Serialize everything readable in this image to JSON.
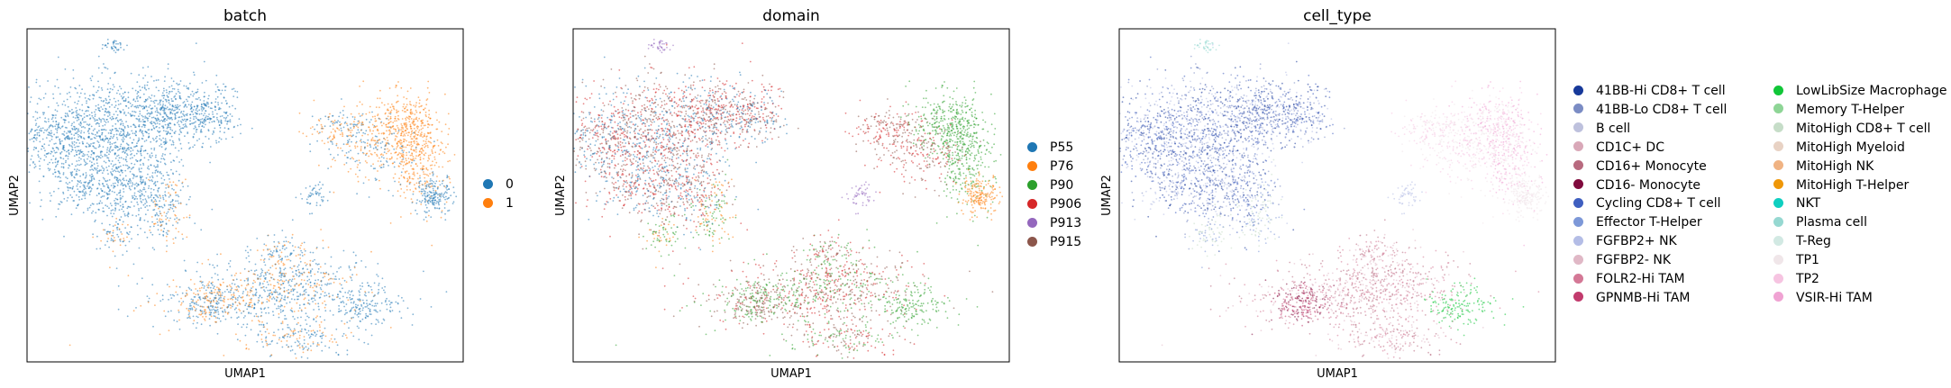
{
  "chart_data": [
    {
      "type": "scatter",
      "title": "batch",
      "xlabel": "UMAP1",
      "ylabel": "UMAP2",
      "grid": false,
      "ticks": false,
      "legend_position": "right",
      "legend": [
        {
          "label": "0",
          "color": "#1f77b4"
        },
        {
          "label": "1",
          "color": "#ff7f0e"
        }
      ]
    },
    {
      "type": "scatter",
      "title": "domain",
      "xlabel": "UMAP1",
      "ylabel": "UMAP2",
      "grid": false,
      "ticks": false,
      "legend_position": "right",
      "legend": [
        {
          "label": "P55",
          "color": "#1f77b4"
        },
        {
          "label": "P76",
          "color": "#ff7f0e"
        },
        {
          "label": "P90",
          "color": "#2ca02c"
        },
        {
          "label": "P906",
          "color": "#d62728"
        },
        {
          "label": "P913",
          "color": "#9467bd"
        },
        {
          "label": "P915",
          "color": "#8c564b"
        }
      ]
    },
    {
      "type": "scatter",
      "title": "cell_type",
      "xlabel": "UMAP1",
      "ylabel": "UMAP2",
      "grid": false,
      "ticks": false,
      "legend_position": "right",
      "legend_columns": 2,
      "legend": [
        {
          "label": "41BB-Hi CD8+ T cell",
          "color": "#17399a"
        },
        {
          "label": "41BB-Lo CD8+ T cell",
          "color": "#7b8cc4"
        },
        {
          "label": "B cell",
          "color": "#bec1dd"
        },
        {
          "label": "CD1C+ DC",
          "color": "#d9a8b8"
        },
        {
          "label": "CD16+ Monocyte",
          "color": "#b86a7f"
        },
        {
          "label": "CD16- Monocyte",
          "color": "#800a3d"
        },
        {
          "label": "Cycling CD8+ T cell",
          "color": "#3f5fc0"
        },
        {
          "label": "Effector T-Helper",
          "color": "#7d98d8"
        },
        {
          "label": "FGFBP2+ NK",
          "color": "#b4bde6"
        },
        {
          "label": "FGFBP2- NK",
          "color": "#e0b8c6"
        },
        {
          "label": "FOLR2-Hi TAM",
          "color": "#d47896"
        },
        {
          "label": "GPNMB-Hi TAM",
          "color": "#c23b6d"
        },
        {
          "label": "LowLibSize Macrophage",
          "color": "#11c638"
        },
        {
          "label": "Memory T-Helper",
          "color": "#8ed596"
        },
        {
          "label": "MitoHigh CD8+ T cell",
          "color": "#c6ddc8"
        },
        {
          "label": "MitoHigh Myeloid",
          "color": "#e8d2c4"
        },
        {
          "label": "MitoHigh NK",
          "color": "#f0b383"
        },
        {
          "label": "MitoHigh T-Helper",
          "color": "#ef9708"
        },
        {
          "label": "NKT",
          "color": "#0fcfc0"
        },
        {
          "label": "Plasma cell",
          "color": "#96d8d1"
        },
        {
          "label": "T-Reg",
          "color": "#d2e9e3"
        },
        {
          "label": "TP1",
          "color": "#f0e6e9"
        },
        {
          "label": "TP2",
          "color": "#f6c4e1"
        },
        {
          "label": "VSIR-Hi TAM",
          "color": "#f0a3d3"
        }
      ]
    }
  ]
}
